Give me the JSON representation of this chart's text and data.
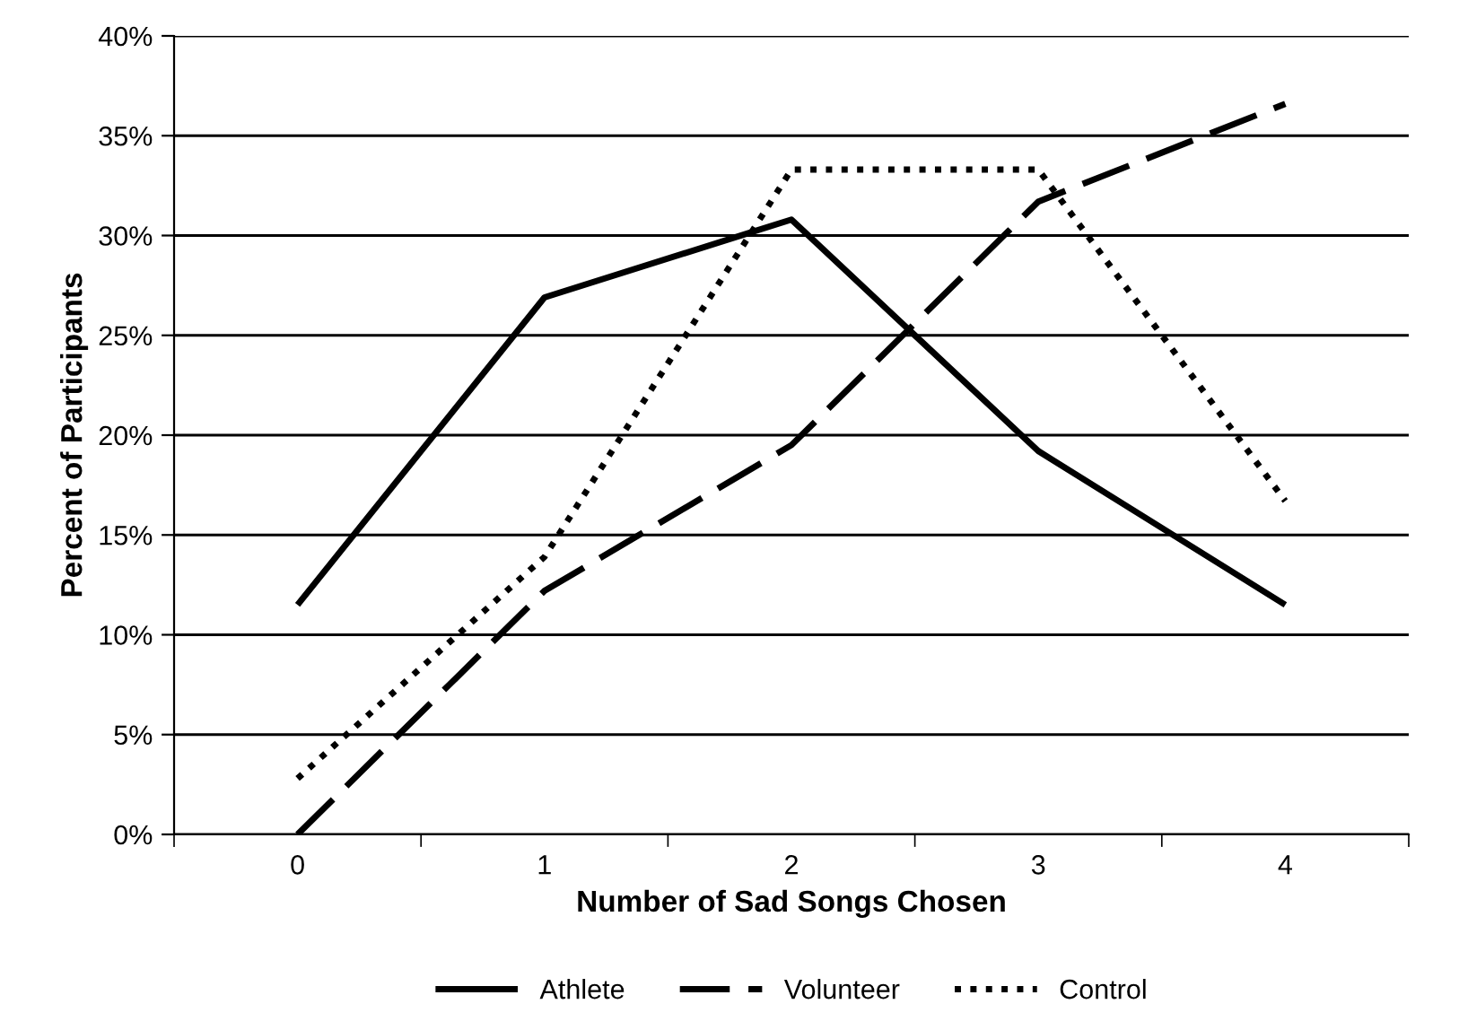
{
  "chart_data": {
    "type": "line",
    "xlabel": "Number of Sad Songs Chosen",
    "ylabel": "Percent of Participants",
    "categories": [
      "0",
      "1",
      "2",
      "3",
      "4"
    ],
    "series": [
      {
        "name": "Athlete",
        "color": "#000000",
        "line_style": "solid",
        "values": [
          11.5,
          26.9,
          30.8,
          19.2,
          11.5
        ]
      },
      {
        "name": "Volunteer",
        "color": "#000000",
        "line_style": "dashed",
        "values": [
          0,
          12.2,
          19.5,
          31.7,
          36.6
        ]
      },
      {
        "name": "Control",
        "color": "#000000",
        "line_style": "dotted",
        "values": [
          2.8,
          13.9,
          33.3,
          33.3,
          16.7
        ]
      }
    ],
    "ylim": [
      0,
      40
    ],
    "yticks": [
      {
        "value": 0,
        "label": "0%"
      },
      {
        "value": 5,
        "label": "5%"
      },
      {
        "value": 10,
        "label": "10%"
      },
      {
        "value": 15,
        "label": "15%"
      },
      {
        "value": 20,
        "label": "20%"
      },
      {
        "value": 25,
        "label": "25%"
      },
      {
        "value": 30,
        "label": "30%"
      },
      {
        "value": 35,
        "label": "35%"
      },
      {
        "value": 40,
        "label": "40%"
      }
    ],
    "grid": "y",
    "legend": "bottom",
    "marker": "none"
  }
}
